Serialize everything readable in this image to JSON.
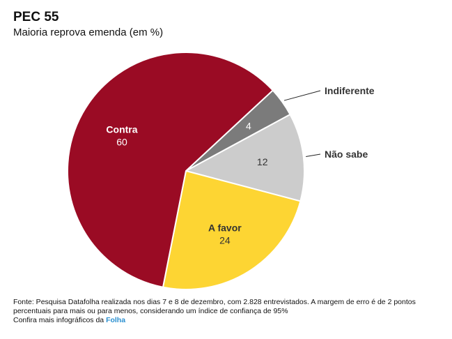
{
  "chart_data": {
    "type": "pie",
    "title": "PEC 55",
    "subtitle": "Maioria reprova emenda (em %)",
    "slices": [
      {
        "label": "Indiferente",
        "value": 4,
        "color": "#7b7b7b",
        "label_outside": true,
        "value_color": "#ffffff"
      },
      {
        "label": "Não sabe",
        "value": 12,
        "color": "#cccccc",
        "label_outside": true,
        "value_color": "#333333"
      },
      {
        "label": "A favor",
        "value": 24,
        "color": "#fdd533",
        "label_outside": false,
        "value_color": "#333333"
      },
      {
        "label": "Contra",
        "value": 60,
        "color": "#9a0b24",
        "label_outside": false,
        "value_color": "#ffffff"
      }
    ]
  },
  "footer": {
    "source": "Fonte: Pesquisa Datafolha realizada nos dias 7 e 8 de dezembro, com 2.828 entrevistados. A margem de erro é de 2 pontos percentuais para mais ou para menos, considerando um índice de confiança de 95%",
    "more_prefix": "Confira mais infográficos da ",
    "more_link": "Folha"
  }
}
